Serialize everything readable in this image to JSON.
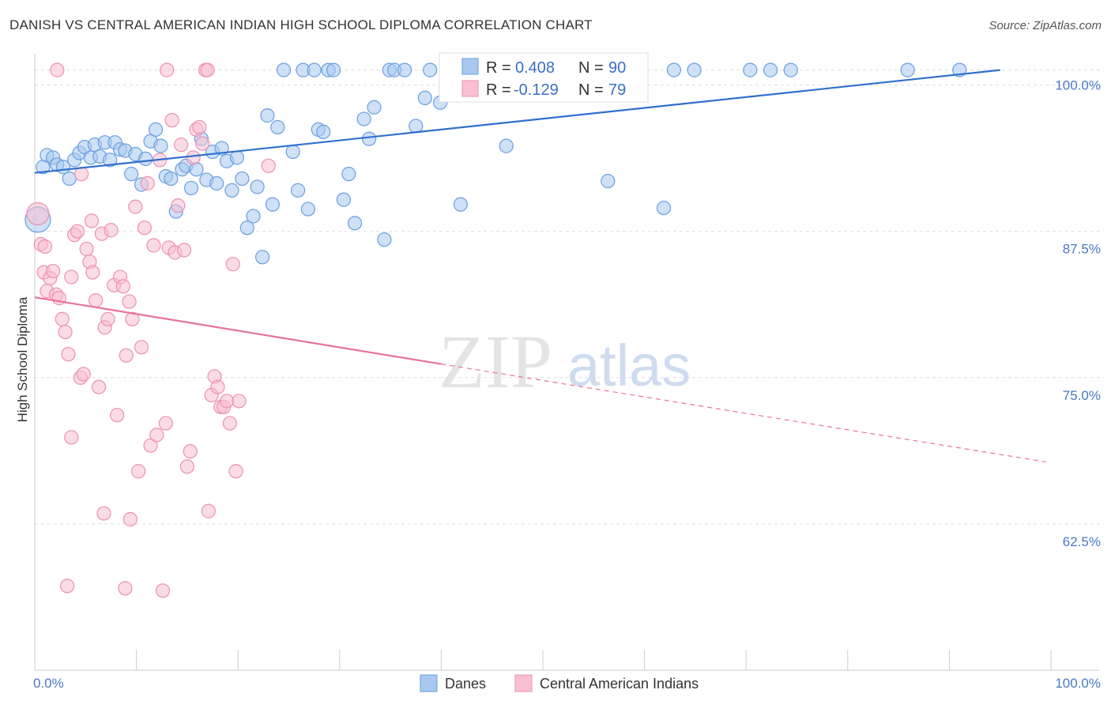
{
  "title": "DANISH VS CENTRAL AMERICAN INDIAN HIGH SCHOOL DIPLOMA CORRELATION CHART",
  "source": "Source: ZipAtlas.com",
  "watermark": {
    "zip": "ZIP",
    "atlas": "atlas"
  },
  "colors": {
    "blue_fill": "#a8c8f0",
    "blue_stroke": "#6a9ee0",
    "blue_line": "#2f6fcf",
    "pink_fill": "#f8c0d2",
    "pink_stroke": "#ee8fb0",
    "pink_line": "#e8729a",
    "grid": "#dddddd",
    "axis_text": "#4a78c8"
  },
  "chart_data": {
    "type": "scatter",
    "xlabel": "",
    "ylabel": "High School Diploma",
    "xlim": [
      0,
      100
    ],
    "ylim": [
      50,
      102
    ],
    "x_tick_labels": [
      "0.0%",
      "100.0%"
    ],
    "y_ticks": [
      62.5,
      75.0,
      87.5,
      100.0
    ],
    "y_tick_labels": [
      "62.5%",
      "75.0%",
      "87.5%",
      "100.0%"
    ],
    "grid": "horizontal dashed",
    "legend": {
      "position": "bottom-center",
      "items": [
        "Danes",
        "Central American Indians"
      ]
    },
    "stats": [
      {
        "r_label": "R =",
        "r_value": "0.408",
        "n_label": "N =",
        "n_value": "90"
      },
      {
        "r_label": "R =",
        "r_value": "-0.129",
        "n_label": "N =",
        "n_value": "79"
      }
    ],
    "series": [
      {
        "name": "Danes",
        "color": "#a8c8f0",
        "trend": {
          "x0": 0,
          "y0": 92.5,
          "x1": 95,
          "y1": 100.0,
          "style": "solid"
        },
        "points": [
          [
            0.3,
            88.5
          ],
          [
            0.8,
            93.0
          ],
          [
            1.2,
            94.0
          ],
          [
            1.8,
            93.8
          ],
          [
            2.2,
            93.2
          ],
          [
            2.8,
            93.0
          ],
          [
            3.4,
            92.0
          ],
          [
            3.9,
            93.6
          ],
          [
            4.4,
            94.2
          ],
          [
            4.9,
            94.7
          ],
          [
            5.5,
            93.8
          ],
          [
            5.9,
            94.9
          ],
          [
            6.4,
            93.9
          ],
          [
            6.9,
            95.1
          ],
          [
            7.4,
            93.6
          ],
          [
            7.9,
            95.1
          ],
          [
            8.4,
            94.5
          ],
          [
            8.9,
            94.4
          ],
          [
            9.5,
            92.4
          ],
          [
            9.9,
            94.1
          ],
          [
            10.5,
            91.5
          ],
          [
            10.9,
            93.7
          ],
          [
            11.4,
            95.2
          ],
          [
            11.9,
            96.2
          ],
          [
            12.4,
            94.8
          ],
          [
            12.9,
            92.2
          ],
          [
            13.4,
            92.0
          ],
          [
            13.9,
            89.2
          ],
          [
            14.5,
            92.8
          ],
          [
            14.9,
            93.1
          ],
          [
            15.4,
            91.2
          ],
          [
            15.9,
            92.8
          ],
          [
            16.4,
            95.4
          ],
          [
            16.9,
            91.9
          ],
          [
            17.5,
            94.3
          ],
          [
            17.9,
            91.6
          ],
          [
            18.4,
            94.6
          ],
          [
            18.9,
            93.5
          ],
          [
            19.4,
            91.0
          ],
          [
            19.9,
            93.8
          ],
          [
            20.4,
            92.0
          ],
          [
            20.9,
            87.8
          ],
          [
            21.5,
            88.8
          ],
          [
            21.9,
            91.3
          ],
          [
            22.4,
            85.3
          ],
          [
            22.9,
            97.4
          ],
          [
            23.4,
            89.8
          ],
          [
            23.9,
            96.4
          ],
          [
            24.5,
            100.0
          ],
          [
            25.4,
            94.3
          ],
          [
            25.9,
            91.0
          ],
          [
            26.4,
            100.0
          ],
          [
            26.9,
            89.4
          ],
          [
            27.5,
            100.0
          ],
          [
            27.9,
            96.2
          ],
          [
            28.4,
            96.0
          ],
          [
            28.9,
            100.0
          ],
          [
            29.4,
            100.0
          ],
          [
            30.4,
            90.2
          ],
          [
            30.9,
            92.4
          ],
          [
            31.5,
            88.2
          ],
          [
            32.4,
            97.1
          ],
          [
            32.9,
            95.4
          ],
          [
            33.4,
            98.1
          ],
          [
            34.4,
            86.8
          ],
          [
            34.9,
            100.0
          ],
          [
            35.4,
            100.0
          ],
          [
            36.4,
            100.0
          ],
          [
            37.5,
            96.5
          ],
          [
            38.4,
            98.9
          ],
          [
            38.9,
            100.0
          ],
          [
            39.9,
            98.5
          ],
          [
            40.9,
            100.0
          ],
          [
            41.5,
            100.0
          ],
          [
            41.9,
            89.8
          ],
          [
            42.4,
            100.0
          ],
          [
            42.9,
            100.0
          ],
          [
            44.9,
            100.0
          ],
          [
            46.4,
            94.8
          ],
          [
            48.9,
            100.0
          ],
          [
            53.9,
            100.0
          ],
          [
            56.4,
            91.8
          ],
          [
            61.9,
            89.5
          ],
          [
            62.9,
            100.0
          ],
          [
            64.9,
            100.0
          ],
          [
            70.4,
            100.0
          ],
          [
            72.4,
            100.0
          ],
          [
            74.4,
            100.0
          ],
          [
            85.9,
            100.0
          ],
          [
            91.0,
            100.0
          ]
        ]
      },
      {
        "name": "Central American Indians",
        "color": "#f8c0d2",
        "trend": {
          "x0": 0,
          "y0": 82.0,
          "x1": 40,
          "y1": 76.3,
          "dash_x1": 100,
          "dash_y1": 68.0,
          "style": "solid-then-dashed"
        },
        "points": [
          [
            0.3,
            89.0
          ],
          [
            0.6,
            86.4
          ],
          [
            0.9,
            84.0
          ],
          [
            1.2,
            82.4
          ],
          [
            1.5,
            83.5
          ],
          [
            1.8,
            84.1
          ],
          [
            2.1,
            82.1
          ],
          [
            2.4,
            81.8
          ],
          [
            2.7,
            80.0
          ],
          [
            3.0,
            78.9
          ],
          [
            3.3,
            77.0
          ],
          [
            3.6,
            83.6
          ],
          [
            3.9,
            87.2
          ],
          [
            4.2,
            87.5
          ],
          [
            4.5,
            75.0
          ],
          [
            4.8,
            75.3
          ],
          [
            5.1,
            86.0
          ],
          [
            5.4,
            84.9
          ],
          [
            5.7,
            84.0
          ],
          [
            6.0,
            81.6
          ],
          [
            6.3,
            74.2
          ],
          [
            6.6,
            87.3
          ],
          [
            6.9,
            79.3
          ],
          [
            7.2,
            80.0
          ],
          [
            7.5,
            87.6
          ],
          [
            7.8,
            82.9
          ],
          [
            8.1,
            71.8
          ],
          [
            8.4,
            83.6
          ],
          [
            8.7,
            82.8
          ],
          [
            9.0,
            76.9
          ],
          [
            9.3,
            81.5
          ],
          [
            9.6,
            80.0
          ],
          [
            9.9,
            89.6
          ],
          [
            10.2,
            67.0
          ],
          [
            10.5,
            77.6
          ],
          [
            10.8,
            87.8
          ],
          [
            11.1,
            91.6
          ],
          [
            11.4,
            69.2
          ],
          [
            11.7,
            86.3
          ],
          [
            12.0,
            70.1
          ],
          [
            12.3,
            93.6
          ],
          [
            12.6,
            56.8
          ],
          [
            12.9,
            71.1
          ],
          [
            13.2,
            86.1
          ],
          [
            13.5,
            97.0
          ],
          [
            13.8,
            85.7
          ],
          [
            14.1,
            89.7
          ],
          [
            14.4,
            94.9
          ],
          [
            14.7,
            85.9
          ],
          [
            15.0,
            67.4
          ],
          [
            15.3,
            68.7
          ],
          [
            15.6,
            93.8
          ],
          [
            15.9,
            96.2
          ],
          [
            16.2,
            96.4
          ],
          [
            16.5,
            95.0
          ],
          [
            16.8,
            100.0
          ],
          [
            17.1,
            63.6
          ],
          [
            17.4,
            73.5
          ],
          [
            17.7,
            75.1
          ],
          [
            18.0,
            74.2
          ],
          [
            18.3,
            72.5
          ],
          [
            18.6,
            72.5
          ],
          [
            18.9,
            73.0
          ],
          [
            19.2,
            71.1
          ],
          [
            19.5,
            84.7
          ],
          [
            19.8,
            67.0
          ],
          [
            20.1,
            73.0
          ],
          [
            3.2,
            57.2
          ],
          [
            6.8,
            63.4
          ],
          [
            8.9,
            57.0
          ],
          [
            9.4,
            62.9
          ],
          [
            3.6,
            69.9
          ],
          [
            2.2,
            100.0
          ],
          [
            4.6,
            92.4
          ],
          [
            1.0,
            86.2
          ],
          [
            5.6,
            88.4
          ],
          [
            13.0,
            100.0
          ],
          [
            17.0,
            100.0
          ],
          [
            23.0,
            93.1
          ]
        ]
      }
    ]
  }
}
